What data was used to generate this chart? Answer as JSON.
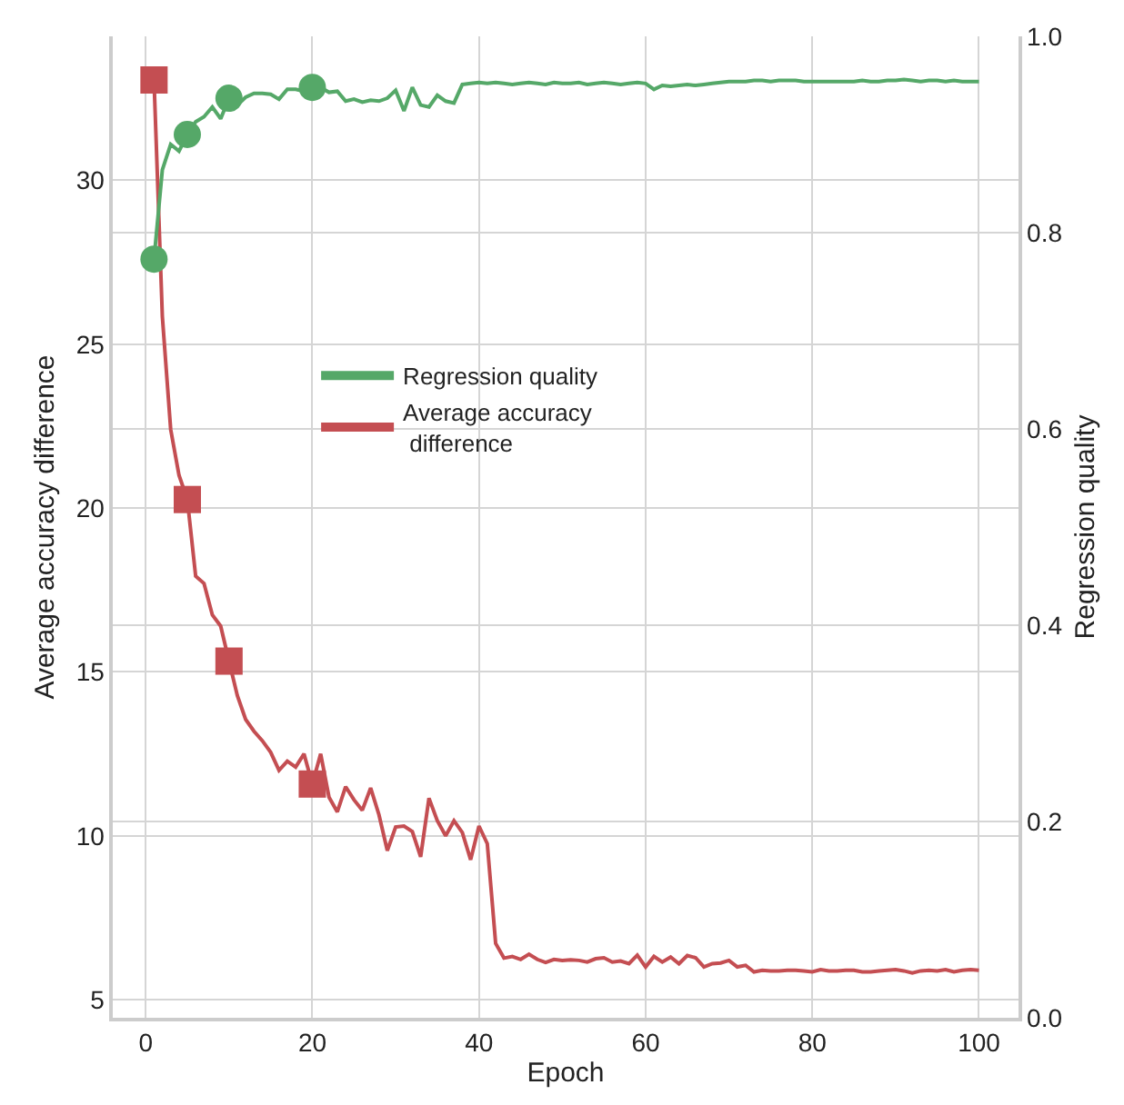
{
  "chart_data": {
    "type": "line",
    "xlabel": "Epoch",
    "ylabel": "Average accuracy difference",
    "y2label": "Regression quality",
    "x": [
      1,
      2,
      3,
      4,
      5,
      6,
      7,
      8,
      9,
      10,
      11,
      12,
      13,
      14,
      15,
      16,
      17,
      18,
      19,
      20,
      21,
      22,
      23,
      24,
      25,
      26,
      27,
      28,
      29,
      30,
      31,
      32,
      33,
      34,
      35,
      36,
      37,
      38,
      39,
      40,
      41,
      42,
      43,
      44,
      45,
      46,
      47,
      48,
      49,
      50,
      51,
      52,
      53,
      54,
      55,
      56,
      57,
      58,
      59,
      60,
      61,
      62,
      63,
      64,
      65,
      66,
      67,
      68,
      69,
      70,
      71,
      72,
      73,
      74,
      75,
      76,
      77,
      78,
      79,
      80,
      81,
      82,
      83,
      84,
      85,
      86,
      87,
      88,
      89,
      90,
      91,
      92,
      93,
      94,
      95,
      96,
      97,
      98,
      99,
      100
    ],
    "series": [
      {
        "name": "Regression quality",
        "color": "#55a868",
        "axis": "y2",
        "values": [
          0.773,
          0.864,
          0.89,
          0.883,
          0.9,
          0.913,
          0.918,
          0.928,
          0.916,
          0.937,
          0.93,
          0.938,
          0.942,
          0.942,
          0.941,
          0.936,
          0.946,
          0.946,
          0.944,
          0.948,
          0.948,
          0.943,
          0.944,
          0.934,
          0.936,
          0.933,
          0.935,
          0.934,
          0.937,
          0.945,
          0.924,
          0.948,
          0.93,
          0.928,
          0.94,
          0.934,
          0.932,
          0.951,
          0.952,
          0.953,
          0.952,
          0.953,
          0.952,
          0.951,
          0.952,
          0.953,
          0.952,
          0.951,
          0.953,
          0.952,
          0.952,
          0.953,
          0.951,
          0.952,
          0.953,
          0.952,
          0.951,
          0.952,
          0.953,
          0.952,
          0.946,
          0.95,
          0.949,
          0.95,
          0.951,
          0.95,
          0.951,
          0.952,
          0.953,
          0.954,
          0.954,
          0.954,
          0.955,
          0.955,
          0.954,
          0.955,
          0.955,
          0.955,
          0.954,
          0.954,
          0.954,
          0.954,
          0.954,
          0.954,
          0.954,
          0.955,
          0.954,
          0.954,
          0.955,
          0.955,
          0.956,
          0.955,
          0.954,
          0.955,
          0.955,
          0.954,
          0.955,
          0.954,
          0.954,
          0.954
        ]
      },
      {
        "name": "Average accuracy\n difference",
        "color": "#c44e52",
        "values": [
          33.06,
          25.85,
          22.4,
          21.0,
          20.26,
          17.92,
          17.7,
          16.74,
          16.4,
          15.33,
          14.28,
          13.55,
          13.19,
          12.9,
          12.55,
          12.0,
          12.28,
          12.1,
          12.5,
          11.58,
          12.5,
          11.18,
          10.73,
          11.5,
          11.1,
          10.78,
          11.46,
          10.64,
          9.55,
          10.27,
          10.3,
          10.13,
          9.36,
          11.15,
          10.46,
          10.0,
          10.46,
          10.1,
          9.27,
          10.3,
          9.76,
          6.72,
          6.27,
          6.32,
          6.23,
          6.39,
          6.23,
          6.14,
          6.23,
          6.2,
          6.22,
          6.2,
          6.15,
          6.25,
          6.28,
          6.15,
          6.18,
          6.1,
          6.36,
          6.0,
          6.32,
          6.15,
          6.3,
          6.1,
          6.35,
          6.28,
          6.0,
          6.1,
          6.12,
          6.2,
          6.0,
          6.05,
          5.85,
          5.9,
          5.88,
          5.88,
          5.9,
          5.9,
          5.88,
          5.85,
          5.92,
          5.88,
          5.88,
          5.9,
          5.9,
          5.85,
          5.85,
          5.88,
          5.9,
          5.92,
          5.88,
          5.82,
          5.88,
          5.9,
          5.88,
          5.92,
          5.85,
          5.9,
          5.92,
          5.9
        ]
      },
      {
        "type": "scatter",
        "color": "#55a868",
        "axis": "y2",
        "marker": "circle",
        "x": [
          1,
          5,
          10,
          20
        ],
        "values": [
          0.773,
          0.9,
          0.937,
          0.948
        ]
      },
      {
        "type": "scatter",
        "color": "#c44e52",
        "marker": "square",
        "x": [
          1,
          5,
          10,
          20
        ],
        "values": [
          33.06,
          20.26,
          15.33,
          11.58
        ]
      }
    ],
    "xlim": [
      -3.95,
      104.75
    ],
    "xticks": [
      0,
      20,
      40,
      60,
      80,
      100
    ],
    "ylim": [
      4.45,
      34.39
    ],
    "yticks": [
      5,
      10,
      15,
      20,
      25,
      30
    ],
    "y2lim": [
      0.0,
      1.0
    ],
    "y2ticks": [
      {
        "value": 0.0,
        "label": "0.0"
      },
      {
        "value": 0.2,
        "label": "0.2"
      },
      {
        "value": 0.4,
        "label": "0.4"
      },
      {
        "value": 0.6,
        "label": "0.6"
      },
      {
        "value": 0.8,
        "label": "0.8"
      },
      {
        "value": 1.0,
        "label": "1.0"
      }
    ],
    "grid": true,
    "legend": "center",
    "line_style": "solid"
  }
}
